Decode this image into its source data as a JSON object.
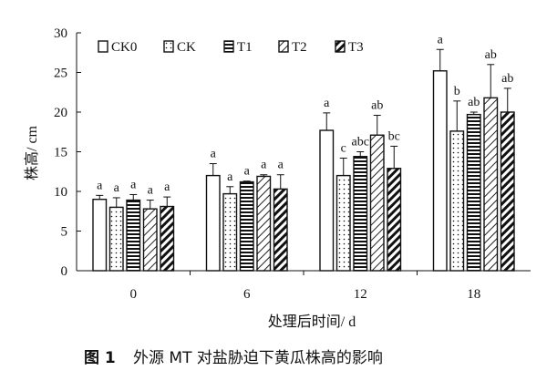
{
  "chart_data": {
    "type": "bar",
    "xlabel": "处理后时间/ d",
    "ylabel": "株高/ cm",
    "ylim": [
      0,
      30
    ],
    "yticks": [
      0,
      5,
      10,
      15,
      20,
      25,
      30
    ],
    "categories": [
      "0",
      "6",
      "12",
      "18"
    ],
    "legend_position": "top-left",
    "series": [
      {
        "name": "CK0",
        "pattern": "blank",
        "values": [
          9.0,
          12.0,
          17.7,
          25.2
        ],
        "errors": [
          0.5,
          1.5,
          2.2,
          2.7
        ],
        "letters": [
          "a",
          "a",
          "a",
          "a"
        ]
      },
      {
        "name": "CK",
        "pattern": "dots",
        "values": [
          8.0,
          9.7,
          12.0,
          17.6
        ],
        "errors": [
          1.2,
          0.9,
          2.2,
          3.8
        ],
        "letters": [
          "a",
          "a",
          "c",
          "b"
        ]
      },
      {
        "name": "T1",
        "pattern": "horizontal-lines",
        "values": [
          8.9,
          11.2,
          14.4,
          19.7
        ],
        "errors": [
          0.7,
          0.1,
          0.6,
          0.3
        ],
        "letters": [
          "a",
          "a",
          "abc",
          "ab"
        ]
      },
      {
        "name": "T2",
        "pattern": "light-diagonal",
        "values": [
          7.8,
          11.9,
          17.1,
          21.8
        ],
        "errors": [
          1.1,
          0.2,
          2.5,
          4.2
        ],
        "letters": [
          "a",
          "a",
          "ab",
          "ab"
        ]
      },
      {
        "name": "T3",
        "pattern": "bold-diagonal",
        "values": [
          8.1,
          10.3,
          12.9,
          20.0
        ],
        "errors": [
          1.2,
          1.8,
          2.8,
          3.0
        ],
        "letters": [
          "a",
          "a",
          "bc",
          "ab"
        ]
      }
    ]
  },
  "caption": {
    "number": "图 1",
    "text": "外源 MT 对盐胁迫下黄瓜株高的影响"
  }
}
